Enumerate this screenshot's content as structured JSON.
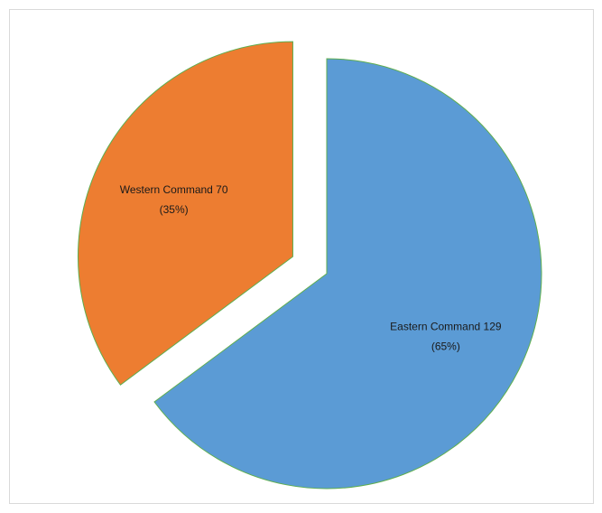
{
  "chart_data": {
    "type": "pie",
    "title": "",
    "legend": "none",
    "slices": [
      {
        "name": "Eastern Command",
        "value": 129,
        "percent_label": "(65%)",
        "label": "Eastern Command 129",
        "color": "#5b9bd5",
        "exploded": false
      },
      {
        "name": "Western Command",
        "value": 70,
        "percent_label": "(35%)",
        "label": "Western Command 70",
        "color": "#ed7d31",
        "exploded": true
      }
    ],
    "slice_border_color": "#5fae4f"
  }
}
